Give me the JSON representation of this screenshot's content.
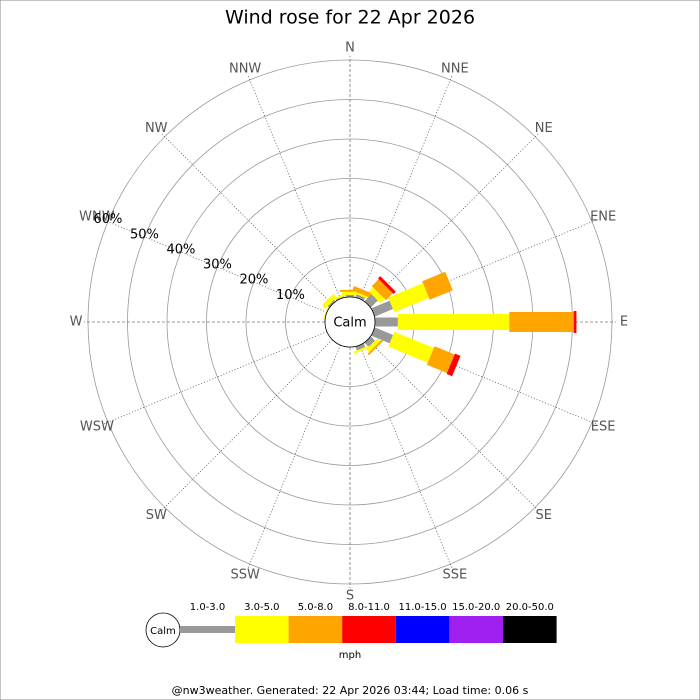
{
  "chart_data": {
    "type": "windrose",
    "title": "Wind rose for 22 Apr 2026",
    "categories": [
      "N",
      "NNE",
      "NE",
      "ENE",
      "E",
      "ESE",
      "SE",
      "SSE",
      "S",
      "SSW",
      "SW",
      "WSW",
      "W",
      "WNW",
      "NW",
      "NNW"
    ],
    "calm_label": "Calm",
    "unit": "mph",
    "rlim": [
      0,
      60
    ],
    "rticks": [
      {
        "value": 10,
        "label": "10%"
      },
      {
        "value": 20,
        "label": "20%"
      },
      {
        "value": 30,
        "label": "30%"
      },
      {
        "value": 40,
        "label": "40%"
      },
      {
        "value": 50,
        "label": "50%"
      },
      {
        "value": 60,
        "label": "60%"
      }
    ],
    "series": [
      {
        "name": "1.0-3.0",
        "color": "#999999",
        "values": [
          0.5,
          0.8,
          2.5,
          5,
          5.8,
          5,
          1.5,
          1,
          0,
          0,
          0,
          0,
          0,
          0,
          0.5,
          0.3
        ]
      },
      {
        "name": "3.0-5.0",
        "color": "#ffff00",
        "values": [
          0.8,
          0.5,
          1.5,
          9.5,
          28.2,
          10.8,
          1,
          0.5,
          0,
          0,
          0,
          0,
          0,
          0.3,
          1.2,
          0.5
        ]
      },
      {
        "name": "5.0-8.0",
        "color": "#ffa500",
        "values": [
          0.5,
          1.2,
          2.5,
          6.3,
          16.3,
          5.5,
          0.5,
          0,
          0,
          0,
          0,
          0,
          0,
          0,
          0,
          0
        ]
      },
      {
        "name": "8.0-11.0",
        "color": "#ff0000",
        "values": [
          0,
          0,
          0.8,
          0,
          0.7,
          1.5,
          0,
          0,
          0,
          0,
          0,
          0,
          0,
          0,
          0,
          0
        ]
      },
      {
        "name": "11.0-15.0",
        "color": "#0000ff",
        "values": [
          0,
          0,
          0,
          0,
          0,
          0,
          0,
          0,
          0,
          0,
          0,
          0,
          0,
          0,
          0,
          0
        ]
      },
      {
        "name": "15.0-20.0",
        "color": "#a020f0",
        "values": [
          0,
          0,
          0,
          0,
          0,
          0,
          0,
          0,
          0,
          0,
          0,
          0,
          0,
          0,
          0,
          0
        ]
      },
      {
        "name": "20.0-50.0",
        "color": "#000000",
        "values": [
          0,
          0,
          0,
          0,
          0,
          0,
          0,
          0,
          0,
          0,
          0,
          0,
          0,
          0,
          0,
          0
        ]
      }
    ],
    "footer": "@nw3weather. Generated: 22 Apr 2026 03:44; Load time: 0.06 s"
  }
}
